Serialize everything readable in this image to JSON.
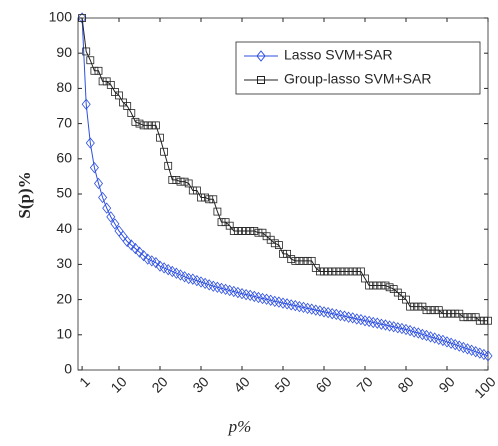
{
  "chart_data": {
    "type": "line",
    "xlabel": "p%",
    "ylabel": "S(p)%",
    "x": [
      1,
      2,
      3,
      4,
      5,
      6,
      7,
      8,
      9,
      10,
      11,
      12,
      13,
      14,
      15,
      16,
      17,
      18,
      19,
      20,
      21,
      22,
      23,
      24,
      25,
      26,
      27,
      28,
      29,
      30,
      31,
      32,
      33,
      34,
      35,
      36,
      37,
      38,
      39,
      40,
      41,
      42,
      43,
      44,
      45,
      46,
      47,
      48,
      49,
      50,
      51,
      52,
      53,
      54,
      55,
      56,
      57,
      58,
      59,
      60,
      61,
      62,
      63,
      64,
      65,
      66,
      67,
      68,
      69,
      70,
      71,
      72,
      73,
      74,
      75,
      76,
      77,
      78,
      79,
      80,
      81,
      82,
      83,
      84,
      85,
      86,
      87,
      88,
      89,
      90,
      91,
      92,
      93,
      94,
      95,
      96,
      97,
      98,
      99,
      100
    ],
    "series": [
      {
        "name": "Lasso SVM+SAR",
        "color": "#2d4fe0",
        "marker": "diamond",
        "values": [
          100,
          75.5,
          64.5,
          57.5,
          53,
          49,
          46,
          43.5,
          41.5,
          39.5,
          38,
          36.5,
          35.5,
          34.5,
          33.5,
          32.5,
          31.5,
          31,
          30.5,
          29.5,
          29,
          28.5,
          28,
          27.5,
          27,
          26.5,
          26,
          25.8,
          25.4,
          25,
          24.6,
          24.2,
          23.8,
          23.5,
          23.2,
          22.9,
          22.6,
          22.3,
          22,
          21.7,
          21.4,
          21.2,
          20.9,
          20.6,
          20.3,
          20.1,
          19.8,
          19.5,
          19.3,
          19.0,
          18.8,
          18.5,
          18.3,
          18.0,
          17.8,
          17.5,
          17.3,
          17.0,
          16.8,
          16.5,
          16.3,
          16.0,
          15.8,
          15.5,
          15.3,
          15.0,
          14.8,
          14.5,
          14.3,
          14.0,
          13.8,
          13.5,
          13.3,
          13.0,
          12.8,
          12.5,
          12.3,
          12.0,
          11.8,
          11.5,
          11.2,
          10.8,
          10.5,
          10.1,
          9.8,
          9.4,
          9.1,
          8.7,
          8.4,
          8.0,
          7.6,
          7.2,
          6.8,
          6.4,
          6.0,
          5.6,
          5.2,
          4.8,
          4.4,
          4.0
        ]
      },
      {
        "name": "Group-lasso SVM+SAR",
        "color": "#222222",
        "marker": "square",
        "values": [
          100,
          90.5,
          88,
          85,
          85,
          82,
          82,
          81,
          79,
          78,
          76,
          75,
          73,
          70.5,
          70,
          69.5,
          69.5,
          69.5,
          69.5,
          66,
          62,
          58,
          54,
          54,
          53.5,
          53.5,
          53,
          51,
          51,
          49,
          49,
          48.5,
          48.5,
          45,
          42,
          42,
          41,
          39.5,
          39.5,
          39.5,
          39.5,
          39.5,
          39.5,
          39,
          39,
          38,
          37,
          36,
          35.5,
          33,
          33,
          31.5,
          31,
          31,
          31,
          31,
          31,
          29,
          28,
          28,
          28,
          28,
          28,
          28,
          28,
          28,
          28,
          28,
          28,
          26,
          24,
          24,
          24,
          24,
          24,
          23.5,
          23,
          22,
          21,
          20,
          18,
          18,
          18,
          18,
          17,
          17,
          17,
          17,
          16,
          16,
          16,
          16,
          16,
          15,
          15,
          15,
          15,
          14,
          14,
          14
        ]
      }
    ],
    "xlim": [
      0,
      100
    ],
    "xticks": [
      1,
      10,
      20,
      30,
      40,
      50,
      60,
      70,
      80,
      90,
      100
    ],
    "ylim": [
      0,
      100
    ],
    "yticks": [
      0,
      10,
      20,
      30,
      40,
      50,
      60,
      70,
      80,
      90,
      100
    ],
    "legend": "upper right"
  }
}
